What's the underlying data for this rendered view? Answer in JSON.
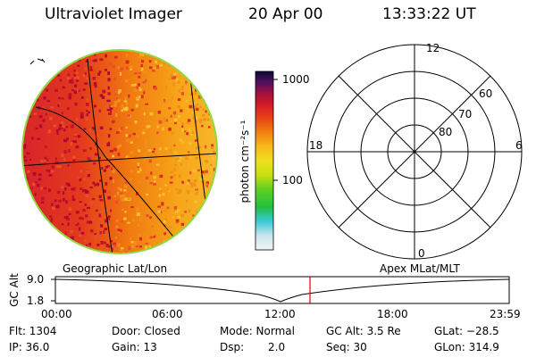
{
  "header": {
    "title": "Ultraviolet Imager",
    "date": "20 Apr 00",
    "time": "13:33:22 UT"
  },
  "colorbar": {
    "unit_label": "photon cm⁻²s⁻¹",
    "tick_1000": "1000",
    "tick_100": "100",
    "scale": "log"
  },
  "polar_plot": {
    "mlt_labels": {
      "top": "12",
      "left": "18",
      "right": "6",
      "bottom": "0"
    },
    "lat_labels": [
      "60",
      "70",
      "80"
    ]
  },
  "panel_labels": {
    "left": "Geographic Lat/Lon",
    "right": "Apex MLat/MLT"
  },
  "timeline": {
    "y_axis_label": "GC Alt",
    "y_ticks": [
      "9.0",
      "1.8"
    ],
    "x_ticks": [
      "00:00",
      "06:00",
      "12:00",
      "18:00",
      "23:59"
    ],
    "current_time_marker_color": "#e00000",
    "current_time": "13:33"
  },
  "info": {
    "flt": "Flt: 1304",
    "door": "Door: Closed",
    "mode": "Mode: Normal",
    "gc_alt": "GC Alt: 3.5 Re",
    "glat": "GLat: −28.5",
    "ip": "IP: 36.0",
    "gain": "Gain: 13",
    "dsp_label": "Dsp:",
    "dsp_value": "2.0",
    "seq": "Seq: 30",
    "glon": "GLon: 314.9"
  }
}
